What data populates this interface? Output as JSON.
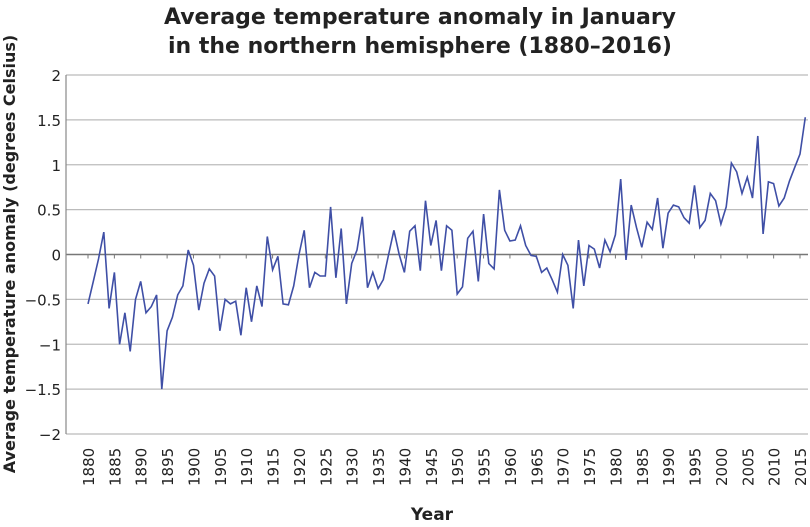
{
  "chart_data": {
    "type": "line",
    "title": [
      "Average temperature anomaly in January",
      "in the northern hemisphere (1880–2016)"
    ],
    "xlabel": "Year",
    "ylabel": "Average temperature anomaly (degrees Celsius)",
    "xlim": [
      1880,
      2016
    ],
    "ylim": [
      -2,
      2
    ],
    "yticks": [
      2,
      1.5,
      1,
      0.5,
      0,
      -0.5,
      -1,
      -1.5,
      -2
    ],
    "ytick_labels": [
      "2",
      "1.5",
      "1",
      "0.5",
      "0",
      "−0.5",
      "−1",
      "−1.5",
      "−2"
    ],
    "xticks": [
      1880,
      1885,
      1890,
      1895,
      1900,
      1905,
      1910,
      1915,
      1920,
      1925,
      1930,
      1935,
      1940,
      1945,
      1950,
      1955,
      1960,
      1965,
      1970,
      1975,
      1980,
      1985,
      1990,
      1995,
      2000,
      2005,
      2010,
      2015
    ],
    "grid": true,
    "line_color": "#3f4fa6",
    "x": [
      1880,
      1881,
      1882,
      1883,
      1884,
      1885,
      1886,
      1887,
      1888,
      1889,
      1890,
      1891,
      1892,
      1893,
      1894,
      1895,
      1896,
      1897,
      1898,
      1899,
      1900,
      1901,
      1902,
      1903,
      1904,
      1905,
      1906,
      1907,
      1908,
      1909,
      1910,
      1911,
      1912,
      1913,
      1914,
      1915,
      1916,
      1917,
      1918,
      1919,
      1920,
      1921,
      1922,
      1923,
      1924,
      1925,
      1926,
      1927,
      1928,
      1929,
      1930,
      1931,
      1932,
      1933,
      1934,
      1935,
      1936,
      1937,
      1938,
      1939,
      1940,
      1941,
      1942,
      1943,
      1944,
      1945,
      1946,
      1947,
      1948,
      1949,
      1950,
      1951,
      1952,
      1953,
      1954,
      1955,
      1956,
      1957,
      1958,
      1959,
      1960,
      1961,
      1962,
      1963,
      1964,
      1965,
      1966,
      1967,
      1968,
      1969,
      1970,
      1971,
      1972,
      1973,
      1974,
      1975,
      1976,
      1977,
      1978,
      1979,
      1980,
      1981,
      1982,
      1983,
      1984,
      1985,
      1986,
      1987,
      1988,
      1989,
      1990,
      1991,
      1992,
      1993,
      1994,
      1995,
      1996,
      1997,
      1998,
      1999,
      2000,
      2001,
      2002,
      2003,
      2004,
      2005,
      2006,
      2007,
      2008,
      2009,
      2010,
      2011,
      2012,
      2013,
      2014,
      2015,
      2016
    ],
    "values": [
      -0.55,
      -0.3,
      -0.05,
      0.25,
      -0.6,
      -0.2,
      -1.0,
      -0.65,
      -1.08,
      -0.5,
      -0.3,
      -0.65,
      -0.58,
      -0.45,
      -1.5,
      -0.85,
      -0.7,
      -0.45,
      -0.35,
      0.05,
      -0.12,
      -0.62,
      -0.32,
      -0.16,
      -0.24,
      -0.85,
      -0.5,
      -0.55,
      -0.52,
      -0.9,
      -0.37,
      -0.75,
      -0.35,
      -0.58,
      0.2,
      -0.17,
      -0.02,
      -0.55,
      -0.56,
      -0.35,
      0.0,
      0.27,
      -0.37,
      -0.2,
      -0.24,
      -0.24,
      0.53,
      -0.26,
      0.29,
      -0.55,
      -0.1,
      0.05,
      0.42,
      -0.37,
      -0.2,
      -0.38,
      -0.28,
      0.0,
      0.27,
      0.0,
      -0.2,
      0.26,
      0.32,
      -0.18,
      0.6,
      0.1,
      0.38,
      -0.18,
      0.32,
      0.27,
      -0.44,
      -0.36,
      0.18,
      0.26,
      -0.3,
      0.45,
      -0.1,
      -0.16,
      0.72,
      0.27,
      0.15,
      0.16,
      0.32,
      0.1,
      -0.01,
      -0.02,
      -0.2,
      -0.15,
      -0.28,
      -0.42,
      0.0,
      -0.12,
      -0.6,
      0.16,
      -0.35,
      0.1,
      0.06,
      -0.15,
      0.16,
      0.03,
      0.22,
      0.84,
      -0.06,
      0.55,
      0.3,
      0.08,
      0.36,
      0.28,
      0.63,
      0.07,
      0.46,
      0.55,
      0.53,
      0.41,
      0.35,
      0.77,
      0.3,
      0.38,
      0.68,
      0.6,
      0.34,
      0.53,
      1.02,
      0.92,
      0.68,
      0.86,
      0.63,
      1.32,
      0.23,
      0.81,
      0.79,
      0.54,
      0.63,
      0.82,
      0.97,
      1.12,
      1.53
    ]
  }
}
